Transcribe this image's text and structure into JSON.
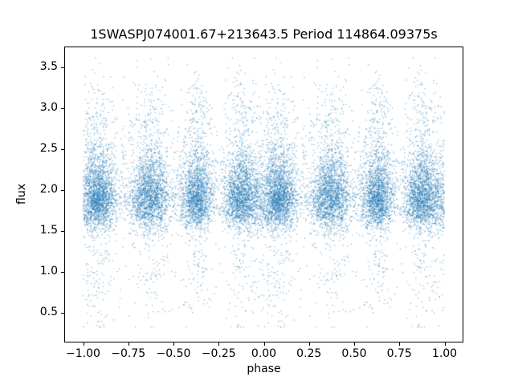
{
  "figure": {
    "background_color": "#ffffff",
    "axes_color": "#000000"
  },
  "chart_data": {
    "type": "scatter",
    "title": "1SWASPJ074001.67+213643.5 Period 114864.09375s",
    "xlabel": "phase",
    "ylabel": "flux",
    "xlim": [
      -1.1,
      1.1
    ],
    "ylim": [
      0.15,
      3.75
    ],
    "xticks": [
      -1.0,
      -0.75,
      -0.5,
      -0.25,
      0.0,
      0.25,
      0.5,
      0.75,
      1.0
    ],
    "xtick_labels": [
      "−1.00",
      "−0.75",
      "−0.50",
      "−0.25",
      "0.00",
      "0.25",
      "0.50",
      "0.75",
      "1.00"
    ],
    "yticks": [
      0.5,
      1.0,
      1.5,
      2.0,
      2.5,
      3.0,
      3.5
    ],
    "ytick_labels": [
      "0.5",
      "1.0",
      "1.5",
      "2.0",
      "2.5",
      "3.0",
      "3.5"
    ],
    "grid": false,
    "legend": "none",
    "point_color": "#1f77b4",
    "point_alpha": 0.5,
    "marker_size_px": 1.3,
    "n_points_displayed": 18000,
    "phase_duplicated": true,
    "scatter_model": {
      "seed": 42,
      "n_base": 9000,
      "y_clip": [
        0.33,
        3.62
      ],
      "clusters": [
        {
          "center": 0.08,
          "x_sigma": 0.055,
          "weight": 0.26,
          "uniform": false
        },
        {
          "center": 0.37,
          "x_sigma": 0.055,
          "weight": 0.24,
          "uniform": false
        },
        {
          "center": 0.63,
          "x_sigma": 0.045,
          "weight": 0.21,
          "uniform": false
        },
        {
          "center": 0.88,
          "x_sigma": 0.05,
          "weight": 0.23,
          "uniform": false
        },
        {
          "center": 0.5,
          "x_sigma": 0.0,
          "weight": 0.06,
          "uniform": true
        }
      ],
      "y_mixture": [
        {
          "mean": 1.85,
          "sigma": 0.17,
          "weight": 0.57
        },
        {
          "mean": 2.18,
          "sigma": 0.2,
          "weight": 0.28
        },
        {
          "mean": 2.8,
          "sigma": 0.33,
          "weight": 0.09
        },
        {
          "mean": 1.15,
          "sigma": 0.42,
          "weight": 0.06
        }
      ]
    }
  }
}
